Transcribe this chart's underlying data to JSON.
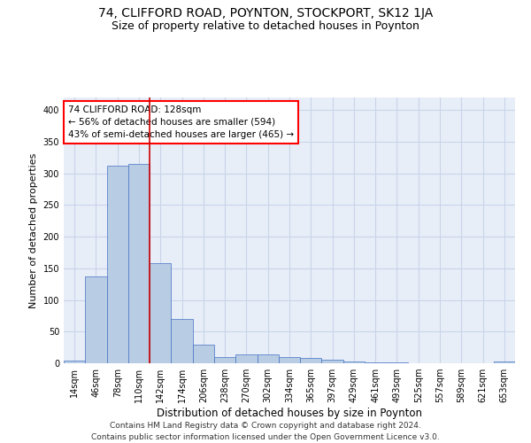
{
  "title": "74, CLIFFORD ROAD, POYNTON, STOCKPORT, SK12 1JA",
  "subtitle": "Size of property relative to detached houses in Poynton",
  "xlabel": "Distribution of detached houses by size in Poynton",
  "ylabel": "Number of detached properties",
  "categories": [
    "14sqm",
    "46sqm",
    "78sqm",
    "110sqm",
    "142sqm",
    "174sqm",
    "206sqm",
    "238sqm",
    "270sqm",
    "302sqm",
    "334sqm",
    "365sqm",
    "397sqm",
    "429sqm",
    "461sqm",
    "493sqm",
    "525sqm",
    "557sqm",
    "589sqm",
    "621sqm",
    "653sqm"
  ],
  "values": [
    4,
    137,
    312,
    315,
    158,
    70,
    30,
    10,
    14,
    14,
    10,
    8,
    5,
    3,
    2,
    2,
    0,
    0,
    0,
    0,
    3
  ],
  "bar_color": "#b8cce4",
  "bar_edge_color": "#4472c4",
  "vline_x": 3.5,
  "vline_color": "#cc0000",
  "annotation_text": "74 CLIFFORD ROAD: 128sqm\n← 56% of detached houses are smaller (594)\n43% of semi-detached houses are larger (465) →",
  "annotation_box_color": "white",
  "annotation_box_edge_color": "red",
  "ylim": [
    0,
    420
  ],
  "yticks": [
    0,
    50,
    100,
    150,
    200,
    250,
    300,
    350,
    400
  ],
  "background_color": "#e8eef8",
  "grid_color": "#c8d4e8",
  "footer": "Contains HM Land Registry data © Crown copyright and database right 2024.\nContains public sector information licensed under the Open Government Licence v3.0.",
  "title_fontsize": 10,
  "subtitle_fontsize": 9,
  "xlabel_fontsize": 8.5,
  "ylabel_fontsize": 8,
  "tick_fontsize": 7,
  "annotation_fontsize": 7.5,
  "footer_fontsize": 6.5
}
